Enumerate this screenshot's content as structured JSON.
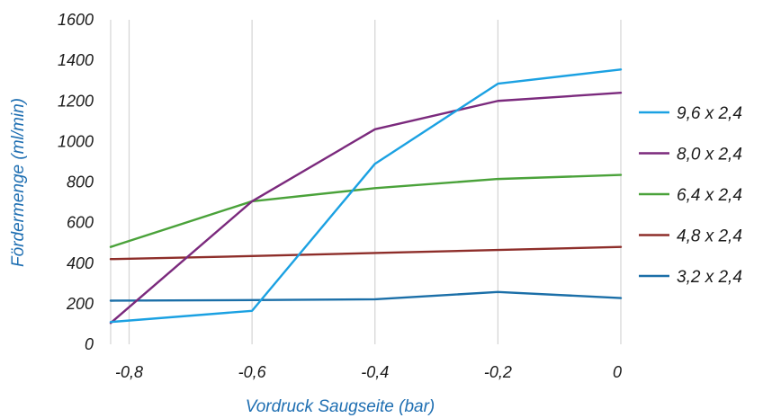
{
  "chart_data": {
    "type": "line",
    "xlabel": "Vordruck Saugseite (bar)",
    "ylabel": "Fördermenge (ml/min)",
    "xlim": [
      -0.83,
      0
    ],
    "ylim": [
      0,
      1600
    ],
    "x_ticks": [
      -0.8,
      -0.6,
      -0.4,
      -0.2,
      0
    ],
    "x_tick_labels": [
      "-0,8",
      "-0,6",
      "-0,4",
      "-0,2",
      "0"
    ],
    "y_ticks": [
      0,
      200,
      400,
      600,
      800,
      1000,
      1200,
      1400,
      1600
    ],
    "y_tick_labels": [
      "0",
      "200",
      "400",
      "600",
      "800",
      "1000",
      "1200",
      "1400",
      "1600"
    ],
    "grid": "vertical",
    "legend_position": "right",
    "x": [
      -0.83,
      -0.6,
      -0.4,
      -0.2,
      0
    ],
    "series": [
      {
        "name": "9,6 x 2,4",
        "color": "#1ba1e2",
        "values": [
          110,
          165,
          890,
          1285,
          1355
        ]
      },
      {
        "name": "8,0 x 2,4",
        "color": "#7b2a7d",
        "values": [
          105,
          705,
          1060,
          1200,
          1240
        ]
      },
      {
        "name": "6,4 x 2,4",
        "color": "#4aa23a",
        "values": [
          480,
          705,
          770,
          815,
          835
        ]
      },
      {
        "name": "4,8 x 2,4",
        "color": "#8e2e2a",
        "values": [
          420,
          435,
          450,
          465,
          480
        ]
      },
      {
        "name": "3,2 x 2,4",
        "color": "#1b6fa8",
        "values": [
          215,
          218,
          222,
          258,
          228
        ]
      }
    ]
  }
}
